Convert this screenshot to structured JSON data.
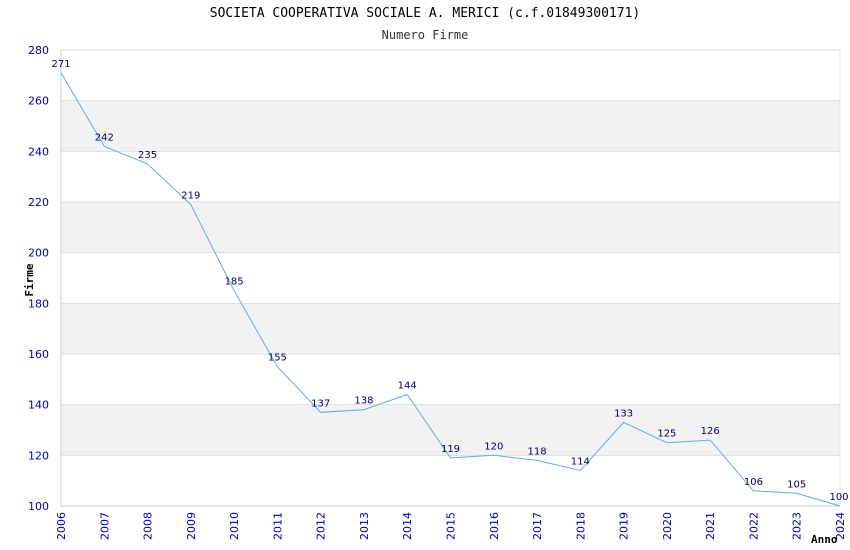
{
  "title": "SOCIETA COOPERATIVA SOCIALE A. MERICI (c.f.01849300171)",
  "subtitle": "Numero Firme",
  "colors": {
    "line": "#6aa6e8",
    "band": "#f2f2f2",
    "grid": "#dddddd",
    "tick_text": "#0000aa",
    "label_text": "#000066"
  },
  "chart_data": {
    "type": "line",
    "title": "SOCIETA COOPERATIVA SOCIALE A. MERICI (c.f.01849300171)",
    "subtitle": "Numero Firme",
    "xlabel": "Anno",
    "ylabel": "Firme",
    "ylim": [
      100,
      280
    ],
    "yticks": [
      100,
      120,
      140,
      160,
      180,
      200,
      220,
      240,
      260,
      280
    ],
    "grid": true,
    "x": [
      "2006",
      "2007",
      "2008",
      "2009",
      "2010",
      "2011",
      "2012",
      "2013",
      "2014",
      "2015",
      "2016",
      "2017",
      "2018",
      "2019",
      "2020",
      "2021",
      "2022",
      "2023",
      "2024"
    ],
    "series": [
      {
        "values": [
          271,
          242,
          235,
          219,
          185,
          155,
          137,
          138,
          144,
          119,
          120,
          118,
          114,
          133,
          125,
          126,
          106,
          105,
          100
        ]
      }
    ]
  }
}
